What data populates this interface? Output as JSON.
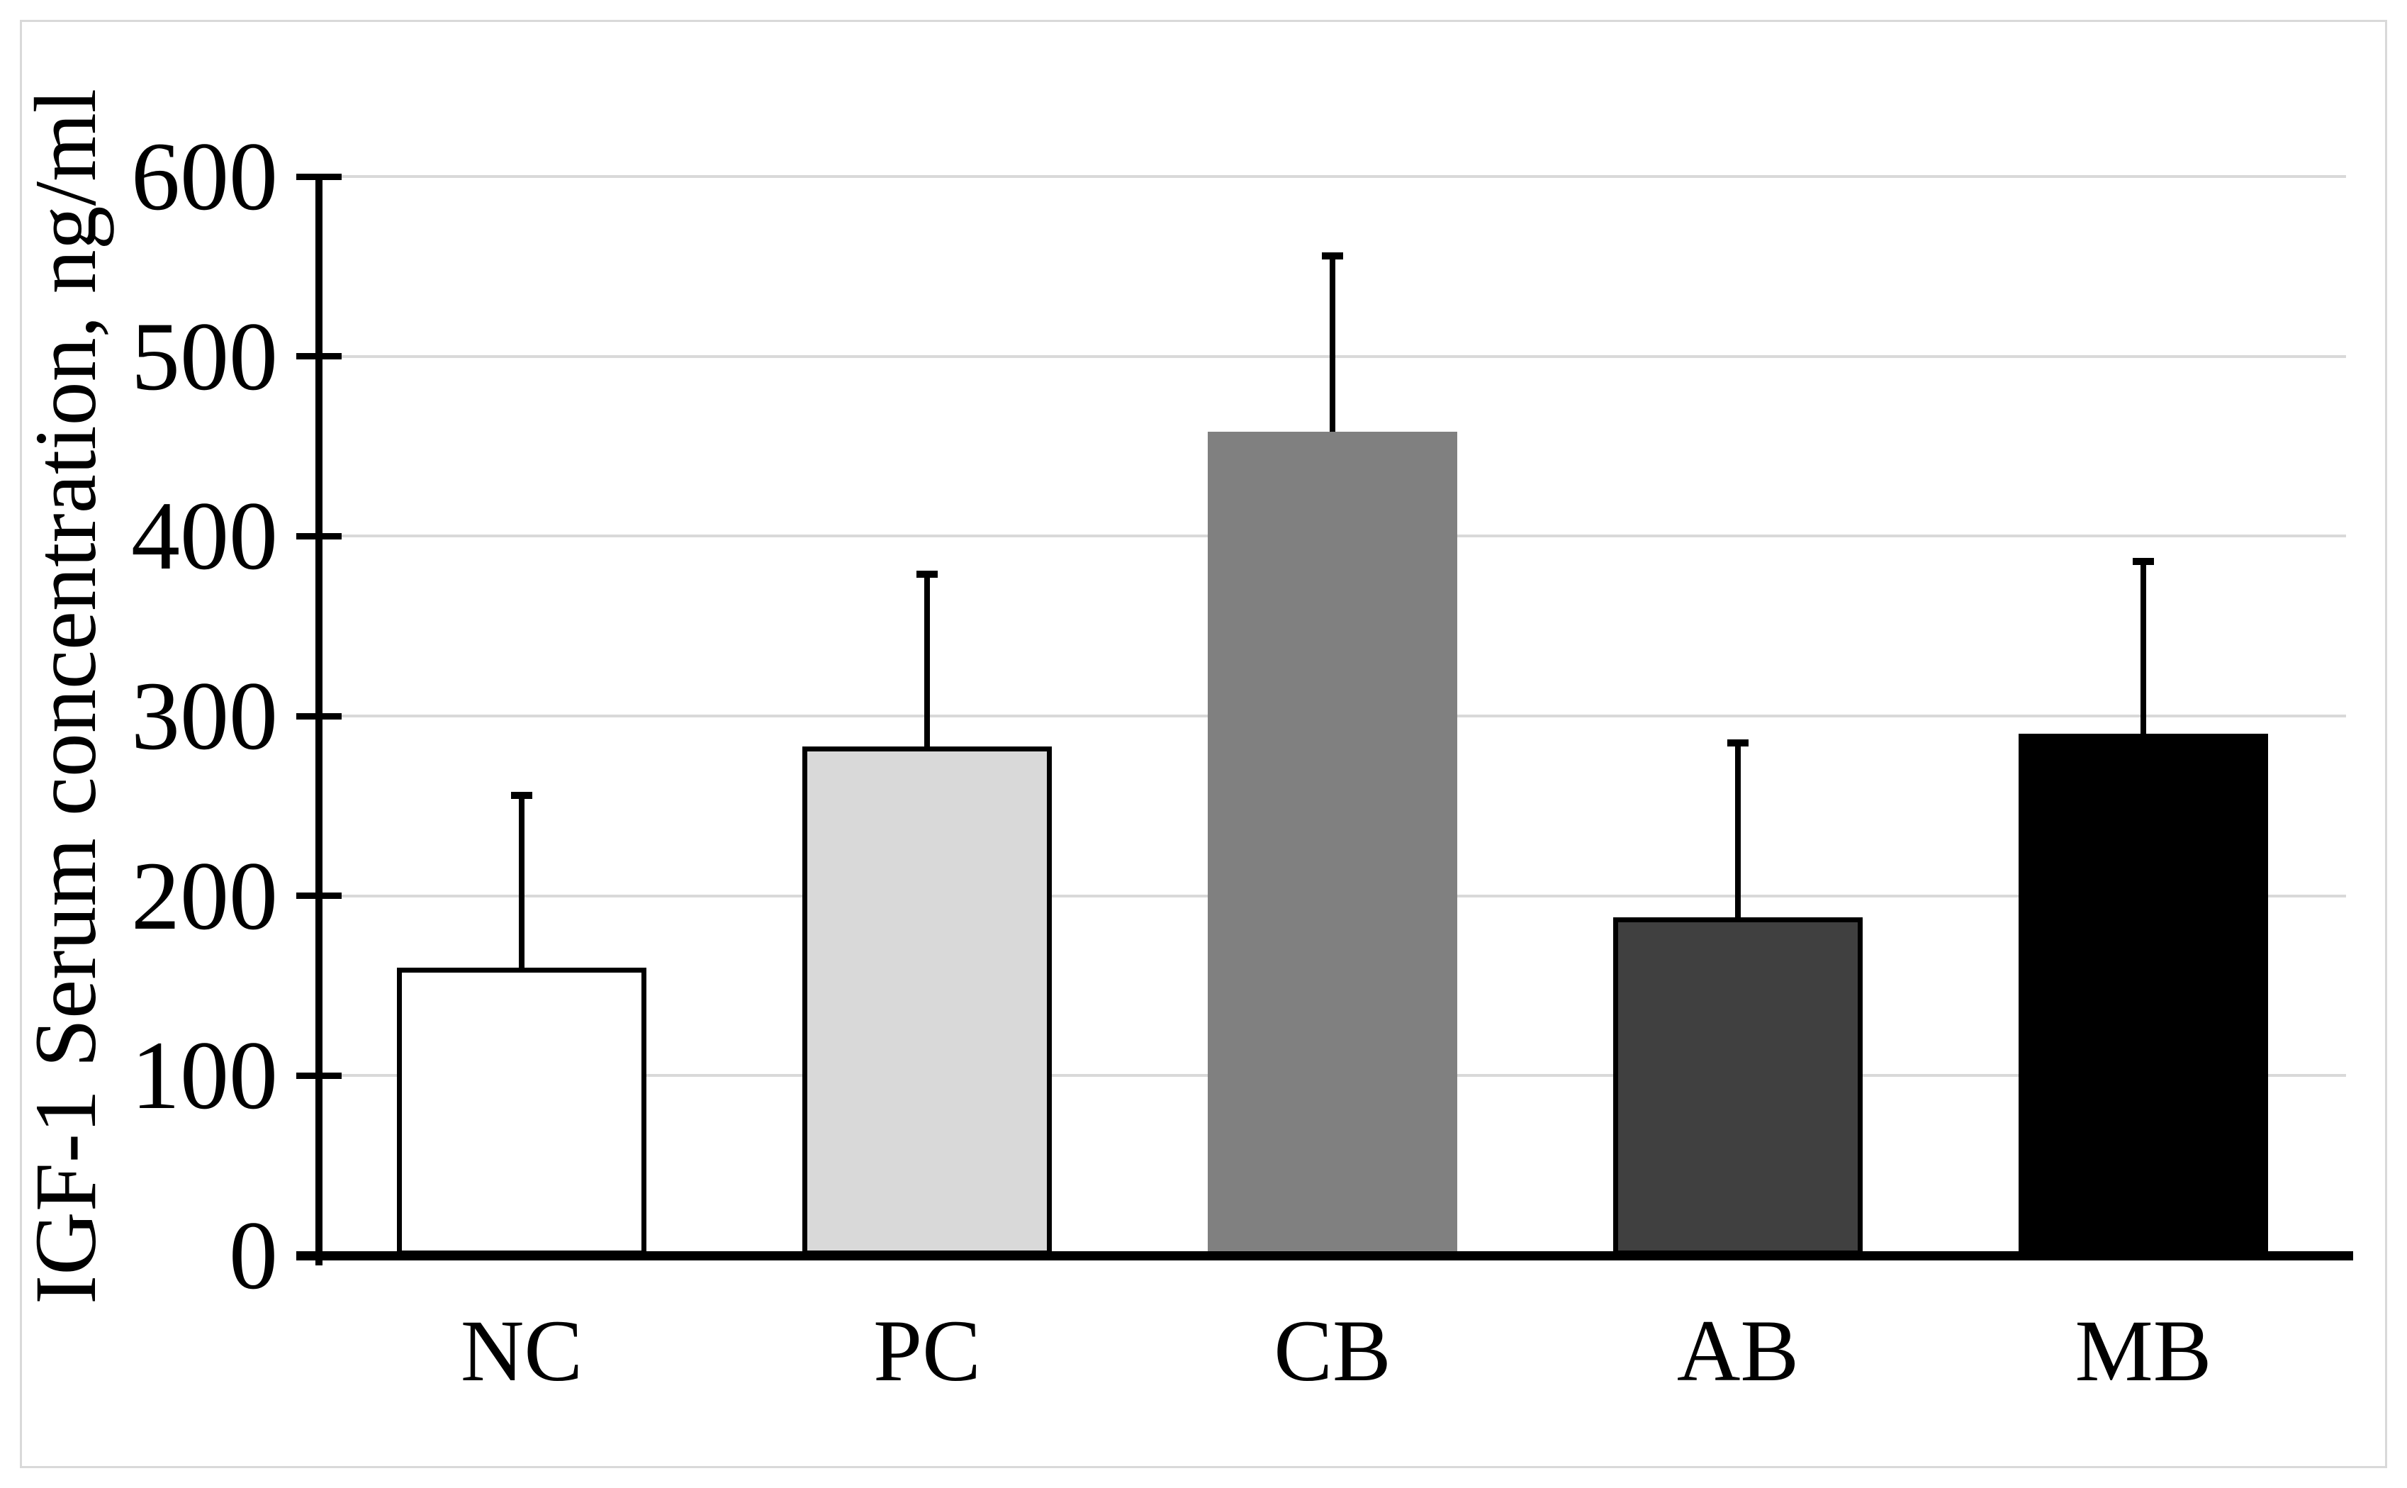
{
  "figure": {
    "background_color": "#ffffff",
    "frame_border_color": "#d9d9d9"
  },
  "chart_data": {
    "type": "bar",
    "title": "",
    "xlabel": "",
    "ylabel": "IGF-1 Serum concentration, ng/ml",
    "categories": [
      "NC",
      "PC",
      "CB",
      "AB",
      "MB"
    ],
    "series": [
      {
        "name": "IGF-1 serum concentration",
        "values": [
          160,
          283,
          458,
          188,
          290
        ],
        "errors_plus": [
          98,
          98,
          100,
          99,
          98
        ]
      }
    ],
    "bar_fill_colors": [
      "#ffffff",
      "#d9d9d9",
      "#808080",
      "#404040",
      "#000000"
    ],
    "bar_border_colors": [
      "#000000",
      "#000000",
      "#808080",
      "#000000",
      "#000000"
    ],
    "error_bar_color": "#000000",
    "ylim": [
      0,
      600
    ],
    "yticks": [
      0,
      100,
      200,
      300,
      400,
      500,
      600
    ],
    "ytick_interval": 100,
    "grid": "horizontal",
    "gridline_color": "#d9d9d9",
    "axis_color": "#000000",
    "legend": "none"
  }
}
